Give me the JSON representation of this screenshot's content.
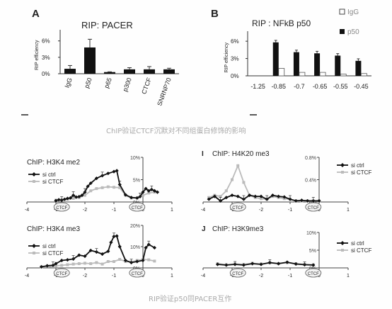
{
  "captions": {
    "top": "ChIP验证CTCF沉默对不同组蛋白修饰的影响",
    "bottom": "RIP验证p50同PACER互作"
  },
  "chart_data": [
    {
      "type": "bar",
      "panel_letter": "A",
      "title": "RIP: PACER",
      "ylabel": "RIP efficiency",
      "ylim": [
        0,
        7
      ],
      "yticks": [
        "0%",
        "3%",
        "6%"
      ],
      "categories": [
        "IgG",
        "p50",
        "p65",
        "p300",
        "CTCF",
        "SNRNP70"
      ],
      "values": [
        0.9,
        4.8,
        0.3,
        0.8,
        0.8,
        0.8
      ],
      "errors": [
        0.6,
        1.5,
        0.05,
        0.3,
        0.5,
        0.2
      ]
    },
    {
      "type": "bar",
      "panel_letter": "B",
      "title": "RIP : NFkB p50",
      "ylabel": "RIP efficiency",
      "ylim": [
        0,
        7
      ],
      "yticks": [
        "0%",
        "3%",
        "6%"
      ],
      "categories": [
        "-1.25",
        "-0.85",
        "-0.7",
        "-0.65",
        "-0.55",
        "-0.45"
      ],
      "series": [
        {
          "name": "IgG",
          "values": [
            0,
            1.3,
            0.6,
            0.6,
            0.3,
            0.4
          ]
        },
        {
          "name": "p50",
          "values": [
            0,
            5.8,
            4.1,
            3.9,
            3.5,
            2.6
          ]
        }
      ],
      "legend": "top-right"
    },
    {
      "type": "line",
      "title": "ChIP: H3K4 me2",
      "ylim": [
        0,
        10
      ],
      "yticks": [
        "0%",
        "5%",
        "10%"
      ],
      "xlim": [
        -4,
        1
      ],
      "xticks": [
        "-4",
        "-3",
        "-2",
        "-1",
        "0",
        "1"
      ],
      "ctcf_label": "CTCF",
      "ctcf_positions": [
        -2.8,
        -0.2
      ],
      "series": [
        {
          "name": "si ctrl",
          "x": [
            -3.0,
            -2.9,
            -2.8,
            -2.7,
            -2.6,
            -2.5,
            -2.4,
            -2.3,
            -2.2,
            -2.1,
            -2.0,
            -1.9,
            -1.8,
            -1.6,
            -1.4,
            -1.2,
            -1.0,
            -0.9,
            -0.8,
            -0.6,
            -0.4,
            -0.2,
            -0.1,
            0.0,
            0.1,
            0.2,
            0.3,
            0.4,
            0.5
          ],
          "y": [
            0.3,
            0.5,
            0.4,
            0.6,
            0.8,
            0.9,
            1.5,
            1.1,
            1.2,
            1.5,
            2.2,
            3.5,
            4.2,
            5.3,
            5.9,
            6.4,
            6.8,
            7.0,
            3.9,
            1.6,
            1.0,
            0.9,
            1.2,
            2.2,
            3.0,
            2.5,
            2.8,
            2.5,
            2.2
          ]
        },
        {
          "name": "si CTCF",
          "x": [
            -3.0,
            -2.8,
            -2.6,
            -2.4,
            -2.2,
            -2.0,
            -1.8,
            -1.6,
            -1.4,
            -1.2,
            -1.0,
            -0.8,
            -0.6,
            -0.4,
            -0.2,
            0.0,
            0.2,
            0.4
          ],
          "y": [
            0.4,
            0.5,
            0.6,
            0.8,
            1.0,
            1.5,
            2.5,
            3.0,
            3.2,
            3.4,
            3.3,
            3.2,
            1.5,
            0.9,
            0.9,
            1.5,
            2.0,
            2.2
          ]
        }
      ]
    },
    {
      "type": "line",
      "panel_letter": "I",
      "title": "ChIP: H4K20 me3",
      "ylim": [
        0,
        0.8
      ],
      "yticks": [
        "0%",
        "0.4%",
        "0.8%"
      ],
      "xlim": [
        -4,
        1
      ],
      "xticks": [
        "-4",
        "-3",
        "-2",
        "-1",
        "0",
        "1"
      ],
      "ctcf_label": "CTCF",
      "ctcf_positions": [
        -2.8,
        -0.2
      ],
      "series": [
        {
          "name": "si ctrl",
          "x": [
            -3.8,
            -3.6,
            -3.4,
            -3.2,
            -3.0,
            -2.8,
            -2.6,
            -2.4,
            -2.2,
            -2.0,
            -1.8,
            -1.6,
            -1.4,
            -1.2,
            -1.0,
            -0.8,
            -0.6,
            -0.4,
            -0.2,
            0.0
          ],
          "y": [
            0.05,
            0.1,
            0.02,
            0.08,
            0.12,
            0.1,
            0.05,
            0.12,
            0.1,
            0.1,
            0.05,
            0.12,
            0.1,
            0.09,
            0.05,
            0.02,
            0.03,
            0.02,
            0.02,
            0.02
          ]
        },
        {
          "name": "si CTCF",
          "x": [
            -3.8,
            -3.6,
            -3.4,
            -3.2,
            -3.0,
            -2.8,
            -2.6,
            -2.4,
            -2.2,
            -2.0,
            -1.8,
            -1.6,
            -1.4,
            -1.2,
            -1.0,
            -0.8,
            -0.6,
            -0.4,
            -0.2,
            0.0
          ],
          "y": [
            0.08,
            0.12,
            0.1,
            0.2,
            0.4,
            0.65,
            0.35,
            0.12,
            0.08,
            0.06,
            0.05,
            0.1,
            0.08,
            0.06,
            0.05,
            0.02,
            0.02,
            0.02,
            0.02,
            0.02
          ]
        }
      ]
    },
    {
      "type": "line",
      "title": "ChIP: H3K4 me3",
      "ylim": [
        0,
        20
      ],
      "yticks": [
        "0%",
        "10%",
        "20%"
      ],
      "xlim": [
        -4,
        1
      ],
      "xticks": [
        "-4",
        "-3",
        "-2",
        "-1",
        "0",
        "1"
      ],
      "ctcf_label": "CTCF",
      "ctcf_positions": [
        -2.8,
        -0.2
      ],
      "series": [
        {
          "name": "si ctrl",
          "x": [
            -3.5,
            -3.3,
            -3.1,
            -3.0,
            -2.8,
            -2.6,
            -2.4,
            -2.2,
            -2.0,
            -1.8,
            -1.6,
            -1.4,
            -1.2,
            -1.1,
            -1.0,
            -0.9,
            -0.8,
            -0.6,
            -0.4,
            -0.2,
            0.0,
            0.1,
            0.2,
            0.4
          ],
          "y": [
            0.5,
            1.0,
            1.2,
            2.0,
            3.5,
            3.8,
            4.2,
            6.0,
            5.5,
            8.2,
            7.5,
            6.5,
            7.8,
            12.0,
            14.8,
            15.0,
            10.0,
            3.5,
            2.5,
            3.0,
            3.5,
            9.5,
            11.0,
            9.5
          ]
        },
        {
          "name": "si CTCF",
          "x": [
            -3.5,
            -3.2,
            -3.0,
            -2.8,
            -2.6,
            -2.4,
            -2.2,
            -2.0,
            -1.8,
            -1.6,
            -1.4,
            -1.2,
            -1.0,
            -0.8,
            -0.6,
            -0.4,
            -0.2,
            0.0,
            0.2,
            0.4
          ],
          "y": [
            0.5,
            0.8,
            1.0,
            1.2,
            1.5,
            1.8,
            2.0,
            2.2,
            2.0,
            2.5,
            1.8,
            3.0,
            3.0,
            4.0,
            3.0,
            2.8,
            3.5,
            4.0,
            3.8,
            3.2
          ]
        }
      ]
    },
    {
      "type": "line",
      "panel_letter": "J",
      "title": "ChIP: H3K9me3",
      "ylim": [
        0,
        10
      ],
      "yticks": [
        "0%",
        "5%",
        "10%"
      ],
      "xlim": [
        -4,
        1
      ],
      "xticks": [
        "-4",
        "-3",
        "-2",
        "-1",
        "0",
        "1"
      ],
      "ctcf_label": "CTCF",
      "ctcf_positions": [
        -2.8,
        -0.2
      ],
      "series": [
        {
          "name": "si ctrl",
          "x": [
            -3.5,
            -3.2,
            -2.9,
            -2.6,
            -2.3,
            -2.0,
            -1.7,
            -1.4,
            -1.1,
            -0.8,
            -0.5,
            -0.2
          ],
          "y": [
            1.0,
            0.8,
            1.0,
            0.8,
            1.2,
            1.0,
            1.5,
            1.2,
            1.6,
            1.1,
            0.9,
            0.8
          ]
        },
        {
          "name": "si CTCF",
          "x": [
            -3.5,
            -3.2,
            -2.9,
            -2.6,
            -2.3,
            -2.0,
            -1.7,
            -1.4,
            -1.1,
            -0.8,
            -0.5,
            -0.2
          ],
          "y": [
            1.2,
            0.9,
            1.1,
            1.0,
            1.3,
            1.1,
            1.4,
            1.2,
            1.5,
            1.2,
            1.0,
            0.9
          ]
        }
      ]
    }
  ]
}
